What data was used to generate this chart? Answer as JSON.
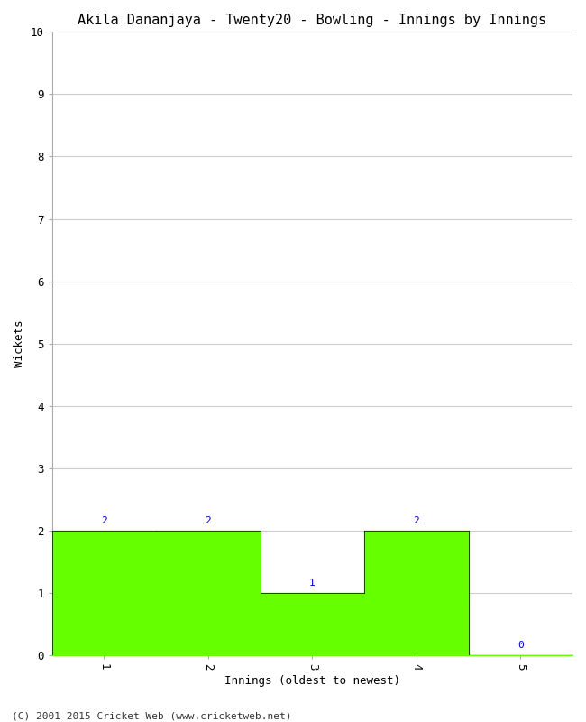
{
  "title": "Akila Dananjaya - Twenty20 - Bowling - Innings by Innings",
  "xlabel": "Innings (oldest to newest)",
  "ylabel": "Wickets",
  "x_values": [
    1,
    2,
    3,
    4,
    5
  ],
  "y_values": [
    2,
    2,
    1,
    2,
    0
  ],
  "bar_color": "#66ff00",
  "label_color": "#0000cc",
  "background_color": "#ffffff",
  "plot_bg_color": "#ffffff",
  "footer": "(C) 2001-2015 Cricket Web (www.cricketweb.net)",
  "title_fontsize": 11,
  "axis_label_fontsize": 9,
  "tick_label_fontsize": 9,
  "bar_label_fontsize": 8,
  "footer_fontsize": 8,
  "ylim": [
    0,
    10
  ],
  "yticks": [
    0,
    1,
    2,
    3,
    4,
    5,
    6,
    7,
    8,
    9,
    10
  ],
  "xticks": [
    1,
    2,
    3,
    4,
    5
  ],
  "grid_color": "#cccccc"
}
